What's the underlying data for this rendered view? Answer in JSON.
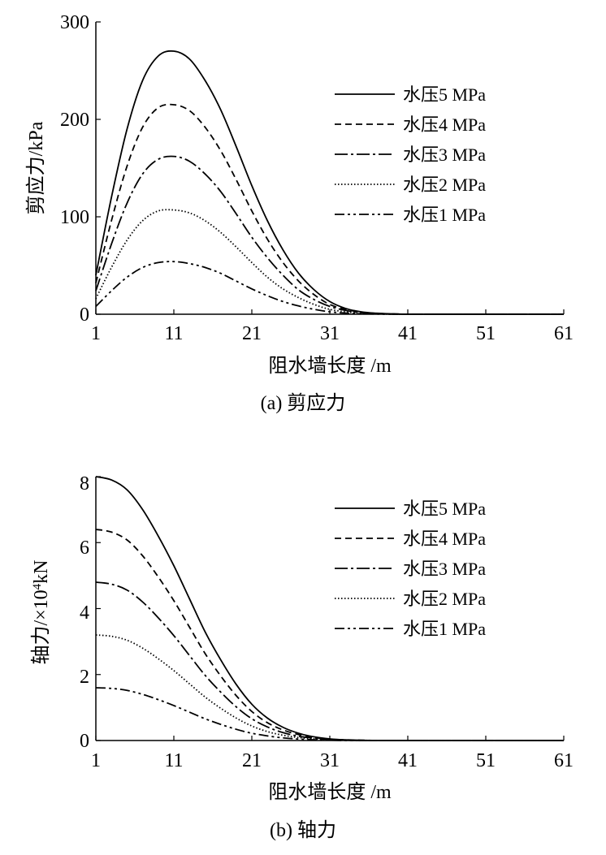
{
  "chart_data": [
    {
      "type": "line",
      "caption": "(a) 剪应力",
      "xlabel": "阻水墙长度 /m",
      "ylabel": "剪应力/kPa",
      "xlim": [
        1,
        61
      ],
      "ylim": [
        0,
        300
      ],
      "xticks": [
        "1",
        "11",
        "21",
        "31",
        "41",
        "51",
        "61"
      ],
      "yticks": [
        "0",
        "100",
        "200",
        "300"
      ],
      "legend_position": "top-right",
      "series": [
        {
          "name": "水压5 MPa",
          "style": "solid",
          "x": [
            1,
            3,
            5,
            7,
            9,
            11,
            13,
            15,
            17,
            19,
            21,
            23,
            25,
            27,
            29,
            31,
            33,
            35,
            37,
            39,
            41,
            43,
            45,
            51,
            61
          ],
          "y": [
            40,
            120,
            190,
            240,
            265,
            270,
            262,
            240,
            210,
            172,
            132,
            96,
            66,
            42,
            25,
            13,
            6,
            2.5,
            1,
            0.4,
            0,
            0,
            0,
            0,
            0
          ]
        },
        {
          "name": "水压4 MPa",
          "style": "dashed",
          "x": [
            1,
            3,
            5,
            7,
            9,
            11,
            13,
            15,
            17,
            19,
            21,
            23,
            25,
            27,
            29,
            31,
            33,
            35,
            37,
            39,
            41,
            43,
            45,
            51,
            61
          ],
          "y": [
            32,
            96,
            152,
            192,
            212,
            215,
            209,
            192,
            168,
            138,
            106,
            77,
            53,
            34,
            20,
            10,
            5,
            2,
            0.8,
            0.3,
            0,
            0,
            0,
            0,
            0
          ]
        },
        {
          "name": "水压3 MPa",
          "style": "dashdot",
          "x": [
            1,
            3,
            5,
            7,
            9,
            11,
            13,
            15,
            17,
            19,
            21,
            23,
            25,
            27,
            29,
            31,
            33,
            35,
            37,
            39,
            41,
            43,
            45,
            51,
            61
          ],
          "y": [
            24,
            72,
            114,
            144,
            159,
            162,
            157,
            144,
            126,
            103,
            79,
            58,
            40,
            25,
            15,
            8,
            4,
            1.5,
            0.6,
            0.2,
            0,
            0,
            0,
            0,
            0
          ]
        },
        {
          "name": "水压2 MPa",
          "style": "dotted",
          "x": [
            1,
            3,
            5,
            7,
            9,
            11,
            13,
            15,
            17,
            19,
            21,
            23,
            25,
            27,
            29,
            31,
            33,
            35,
            37,
            39,
            41,
            43,
            45,
            51,
            61
          ],
          "y": [
            16,
            48,
            76,
            96,
            106,
            107,
            104,
            96,
            84,
            69,
            53,
            38,
            26,
            17,
            10,
            5,
            2.5,
            1,
            0.4,
            0.1,
            0,
            0,
            0,
            0,
            0
          ]
        },
        {
          "name": "水压1 MPa",
          "style": "dashdotdot",
          "x": [
            1,
            3,
            5,
            7,
            9,
            11,
            13,
            15,
            17,
            19,
            21,
            23,
            25,
            27,
            29,
            31,
            33,
            35,
            37,
            39,
            41,
            43,
            45,
            51,
            61
          ],
          "y": [
            8,
            24,
            38,
            48,
            53,
            54,
            52,
            48,
            42,
            34,
            26,
            19,
            13,
            8.5,
            5,
            2.5,
            1.2,
            0.5,
            0.2,
            0.1,
            0,
            0,
            0,
            0,
            0
          ]
        }
      ]
    },
    {
      "type": "line",
      "caption": "(b) 轴力",
      "xlabel": "阻水墙长度 /m",
      "ylabel_main": "轴力/×10",
      "ylabel_sup": "4",
      "ylabel_unit": "kN",
      "xlim": [
        1,
        61
      ],
      "ylim": [
        0,
        8
      ],
      "xticks": [
        "1",
        "11",
        "21",
        "31",
        "41",
        "51",
        "61"
      ],
      "yticks": [
        "0",
        "2",
        "4",
        "6",
        "8"
      ],
      "legend_position": "top-right",
      "series": [
        {
          "name": "水压5 MPa",
          "style": "solid",
          "x": [
            1,
            3,
            5,
            7,
            9,
            11,
            13,
            15,
            17,
            19,
            21,
            23,
            25,
            27,
            29,
            31,
            33,
            35,
            37,
            39,
            41,
            45,
            51,
            61
          ],
          "y": [
            8.0,
            7.9,
            7.6,
            7.0,
            6.2,
            5.3,
            4.3,
            3.3,
            2.45,
            1.7,
            1.1,
            0.68,
            0.4,
            0.22,
            0.11,
            0.05,
            0.02,
            0.01,
            0,
            0,
            0,
            0,
            0,
            0
          ]
        },
        {
          "name": "水压4 MPa",
          "style": "dashed",
          "x": [
            1,
            3,
            5,
            7,
            9,
            11,
            13,
            15,
            17,
            19,
            21,
            23,
            25,
            27,
            29,
            31,
            33,
            35,
            37,
            39,
            41,
            45,
            51,
            61
          ],
          "y": [
            6.4,
            6.32,
            6.08,
            5.6,
            4.96,
            4.24,
            3.44,
            2.64,
            1.96,
            1.36,
            0.88,
            0.54,
            0.32,
            0.18,
            0.09,
            0.04,
            0.02,
            0.01,
            0,
            0,
            0,
            0,
            0,
            0
          ]
        },
        {
          "name": "水压3 MPa",
          "style": "dashdot",
          "x": [
            1,
            3,
            5,
            7,
            9,
            11,
            13,
            15,
            17,
            19,
            21,
            23,
            25,
            27,
            29,
            31,
            33,
            35,
            37,
            39,
            41,
            45,
            51,
            61
          ],
          "y": [
            4.8,
            4.74,
            4.56,
            4.2,
            3.72,
            3.18,
            2.58,
            1.98,
            1.47,
            1.02,
            0.66,
            0.41,
            0.24,
            0.13,
            0.07,
            0.03,
            0.01,
            0,
            0,
            0,
            0,
            0,
            0,
            0
          ]
        },
        {
          "name": "水压2 MPa",
          "style": "dotted",
          "x": [
            1,
            3,
            5,
            7,
            9,
            11,
            13,
            15,
            17,
            19,
            21,
            23,
            25,
            27,
            29,
            31,
            33,
            35,
            37,
            39,
            41,
            45,
            51,
            61
          ],
          "y": [
            3.2,
            3.16,
            3.04,
            2.8,
            2.48,
            2.12,
            1.72,
            1.32,
            0.98,
            0.68,
            0.44,
            0.27,
            0.16,
            0.09,
            0.05,
            0.02,
            0.01,
            0,
            0,
            0,
            0,
            0,
            0,
            0
          ]
        },
        {
          "name": "水压1 MPa",
          "style": "dashdotdot",
          "x": [
            1,
            3,
            5,
            7,
            9,
            11,
            13,
            15,
            17,
            19,
            21,
            23,
            25,
            27,
            29,
            31,
            33,
            35,
            37,
            39,
            41,
            45,
            51,
            61
          ],
          "y": [
            1.6,
            1.58,
            1.52,
            1.4,
            1.24,
            1.06,
            0.86,
            0.66,
            0.49,
            0.34,
            0.22,
            0.14,
            0.08,
            0.045,
            0.02,
            0.01,
            0,
            0,
            0,
            0,
            0,
            0,
            0,
            0
          ]
        }
      ]
    }
  ]
}
